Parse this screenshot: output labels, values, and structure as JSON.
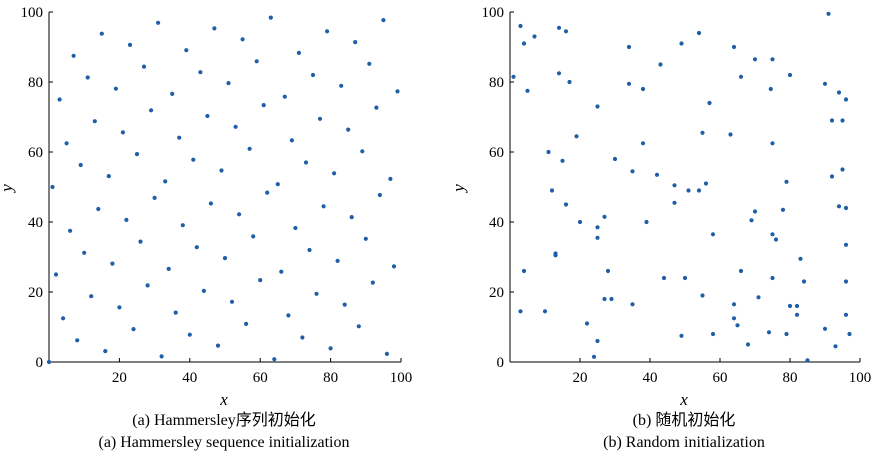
{
  "chart_data": [
    {
      "type": "scatter",
      "xlabel": "x",
      "ylabel": "y",
      "xlim": [
        0,
        100
      ],
      "ylim": [
        0,
        100
      ],
      "xticks": [
        20,
        40,
        60,
        80,
        100
      ],
      "yticks": [
        0,
        20,
        40,
        60,
        80,
        100
      ],
      "caption_cn": "(a) Hammersley序列初始化",
      "caption_en": "(a) Hammersley sequence initialization",
      "color": "#1f5fa8",
      "points": [
        [
          0,
          0
        ],
        [
          1,
          50
        ],
        [
          2,
          25
        ],
        [
          3,
          75
        ],
        [
          4,
          12.5
        ],
        [
          5,
          62.5
        ],
        [
          6,
          37.5
        ],
        [
          7,
          87.5
        ],
        [
          8,
          6.2
        ],
        [
          9,
          56.3
        ],
        [
          10,
          31.2
        ],
        [
          11,
          81.3
        ],
        [
          12,
          18.8
        ],
        [
          13,
          68.8
        ],
        [
          14,
          43.7
        ],
        [
          15,
          93.8
        ],
        [
          16,
          3.1
        ],
        [
          17,
          53.1
        ],
        [
          18,
          28.1
        ],
        [
          19,
          78.1
        ],
        [
          20,
          15.6
        ],
        [
          21,
          65.6
        ],
        [
          22,
          40.6
        ],
        [
          23,
          90.6
        ],
        [
          24,
          9.4
        ],
        [
          25,
          59.4
        ],
        [
          26,
          34.4
        ],
        [
          27,
          84.4
        ],
        [
          28,
          21.9
        ],
        [
          29,
          71.9
        ],
        [
          30,
          46.9
        ],
        [
          31,
          96.9
        ],
        [
          32,
          1.6
        ],
        [
          33,
          51.6
        ],
        [
          34,
          26.6
        ],
        [
          35,
          76.6
        ],
        [
          36,
          14.1
        ],
        [
          37,
          64.1
        ],
        [
          38,
          39.1
        ],
        [
          39,
          89.1
        ],
        [
          40,
          7.8
        ],
        [
          41,
          57.8
        ],
        [
          42,
          32.8
        ],
        [
          43,
          82.8
        ],
        [
          44,
          20.3
        ],
        [
          45,
          70.3
        ],
        [
          46,
          45.3
        ],
        [
          47,
          95.3
        ],
        [
          48,
          4.7
        ],
        [
          49,
          54.7
        ],
        [
          50,
          29.7
        ],
        [
          51,
          79.7
        ],
        [
          52,
          17.2
        ],
        [
          53,
          67.2
        ],
        [
          54,
          42.2
        ],
        [
          55,
          92.2
        ],
        [
          56,
          10.9
        ],
        [
          57,
          60.9
        ],
        [
          58,
          35.9
        ],
        [
          59,
          85.9
        ],
        [
          60,
          23.4
        ],
        [
          61,
          73.4
        ],
        [
          62,
          48.4
        ],
        [
          63,
          98.4
        ],
        [
          64,
          0.8
        ],
        [
          65,
          50.8
        ],
        [
          66,
          25.8
        ],
        [
          67,
          75.8
        ],
        [
          68,
          13.3
        ],
        [
          69,
          63.3
        ],
        [
          70,
          38.3
        ],
        [
          71,
          88.3
        ],
        [
          72,
          7
        ],
        [
          73,
          57
        ],
        [
          74,
          32
        ],
        [
          75,
          82
        ],
        [
          76,
          19.5
        ],
        [
          77,
          69.5
        ],
        [
          78,
          44.5
        ],
        [
          79,
          94.5
        ],
        [
          80,
          3.9
        ],
        [
          81,
          53.9
        ],
        [
          82,
          28.9
        ],
        [
          83,
          78.9
        ],
        [
          84,
          16.4
        ],
        [
          85,
          66.4
        ],
        [
          86,
          41.4
        ],
        [
          87,
          91.4
        ],
        [
          88,
          10.2
        ],
        [
          89,
          60.2
        ],
        [
          90,
          35.2
        ],
        [
          91,
          85.2
        ],
        [
          92,
          22.7
        ],
        [
          93,
          72.7
        ],
        [
          94,
          47.7
        ],
        [
          95,
          97.7
        ],
        [
          96,
          2.3
        ],
        [
          97,
          52.3
        ],
        [
          98,
          27.3
        ],
        [
          99,
          77.3
        ]
      ]
    },
    {
      "type": "scatter",
      "xlabel": "x",
      "ylabel": "y",
      "xlim": [
        0,
        100
      ],
      "ylim": [
        0,
        100
      ],
      "xticks": [
        20,
        40,
        60,
        80,
        100
      ],
      "yticks": [
        0,
        20,
        40,
        60,
        80,
        100
      ],
      "caption_cn": "(b) 随机初始化",
      "caption_en": "(b) Random initialization",
      "color": "#1f5fa8",
      "points": [
        [
          3,
          96
        ],
        [
          4,
          91
        ],
        [
          7,
          93
        ],
        [
          14,
          95.5
        ],
        [
          16,
          94.5
        ],
        [
          1,
          81.5
        ],
        [
          5,
          77.5
        ],
        [
          14,
          82.5
        ],
        [
          17,
          80
        ],
        [
          25,
          73
        ],
        [
          34,
          90
        ],
        [
          38,
          78
        ],
        [
          43,
          85
        ],
        [
          49,
          91
        ],
        [
          54,
          94
        ],
        [
          34,
          79.5
        ],
        [
          57,
          74
        ],
        [
          64,
          90
        ],
        [
          66,
          81.5
        ],
        [
          70,
          86.5
        ],
        [
          75,
          86.5
        ],
        [
          80,
          82
        ],
        [
          91,
          99.5
        ],
        [
          90,
          79.5
        ],
        [
          94,
          77
        ],
        [
          96,
          75
        ],
        [
          74.5,
          78
        ],
        [
          11,
          60
        ],
        [
          15,
          57.5
        ],
        [
          19,
          64.5
        ],
        [
          30,
          58
        ],
        [
          38,
          62.5
        ],
        [
          35,
          54.5
        ],
        [
          42,
          53.5
        ],
        [
          47,
          50.5
        ],
        [
          51,
          49
        ],
        [
          54,
          49
        ],
        [
          56,
          51
        ],
        [
          55,
          65.5
        ],
        [
          63,
          65
        ],
        [
          75,
          62.5
        ],
        [
          79,
          51.5
        ],
        [
          92,
          69
        ],
        [
          95,
          69
        ],
        [
          92,
          53
        ],
        [
          95,
          55
        ],
        [
          12,
          49
        ],
        [
          16,
          45
        ],
        [
          20,
          40
        ],
        [
          25,
          38.5
        ],
        [
          27,
          41.5
        ],
        [
          25,
          35.5
        ],
        [
          39,
          40
        ],
        [
          47,
          45.5
        ],
        [
          58,
          36.5
        ],
        [
          69,
          40.5
        ],
        [
          70,
          43
        ],
        [
          75,
          36.5
        ],
        [
          76,
          35
        ],
        [
          78,
          43.5
        ],
        [
          94,
          44.5
        ],
        [
          96,
          44
        ],
        [
          96,
          33.5
        ],
        [
          4,
          26
        ],
        [
          13,
          31
        ],
        [
          13,
          30.5
        ],
        [
          28,
          26
        ],
        [
          27,
          18
        ],
        [
          29,
          18
        ],
        [
          35,
          16.5
        ],
        [
          44,
          24
        ],
        [
          50,
          24
        ],
        [
          55,
          19
        ],
        [
          64,
          16.5
        ],
        [
          66,
          26
        ],
        [
          75,
          24
        ],
        [
          83,
          29.5
        ],
        [
          80,
          16
        ],
        [
          82,
          16
        ],
        [
          84,
          23
        ],
        [
          96,
          23
        ],
        [
          3,
          14.5
        ],
        [
          10,
          14.5
        ],
        [
          22,
          11
        ],
        [
          24,
          1.5
        ],
        [
          25,
          6
        ],
        [
          49,
          7.5
        ],
        [
          58,
          8
        ],
        [
          64,
          12.5
        ],
        [
          65,
          10.5
        ],
        [
          68,
          5
        ],
        [
          74,
          8.5
        ],
        [
          79,
          8
        ],
        [
          82,
          13.5
        ],
        [
          85,
          0.5
        ],
        [
          90,
          9.5
        ],
        [
          93,
          4.5
        ],
        [
          97,
          8
        ],
        [
          96,
          13.5
        ],
        [
          71,
          18.5
        ]
      ]
    }
  ]
}
